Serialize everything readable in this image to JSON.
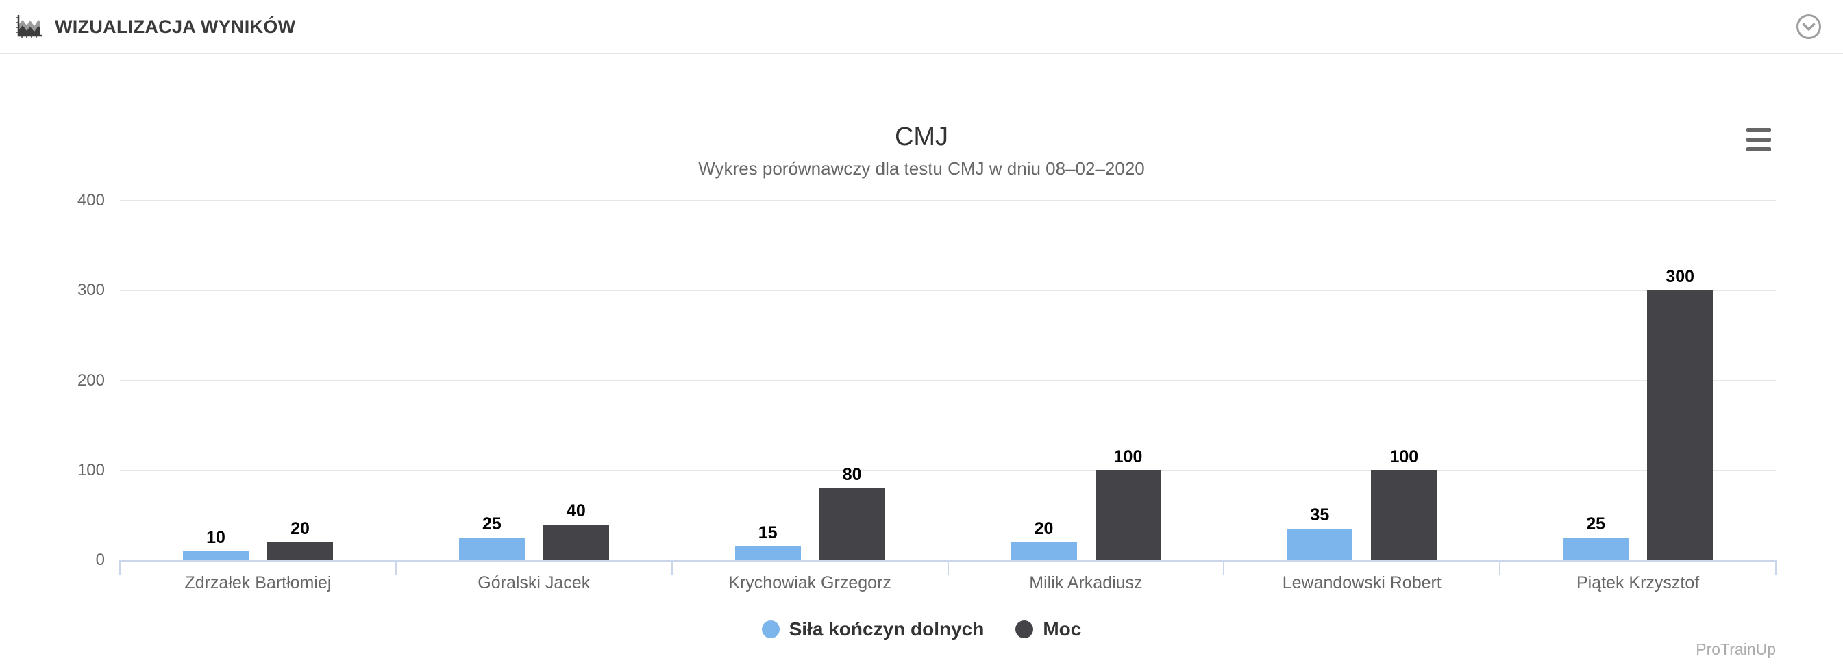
{
  "header": {
    "title": "WIZUALIZACJA WYNIKÓW",
    "logo_icon": "area-chart-icon",
    "collapse_icon": "chevron-down-circle-icon"
  },
  "export_menu_icon": "hamburger-menu-icon",
  "chart_data": {
    "type": "bar",
    "title": "CMJ",
    "subtitle": "Wykres porównawczy dla testu CMJ w dniu 08–02–2020",
    "categories": [
      "Zdrzałek Bartłomiej",
      "Góralski Jacek",
      "Krychowiak Grzegorz",
      "Milik Arkadiusz",
      "Lewandowski Robert",
      "Piątek Krzysztof"
    ],
    "series": [
      {
        "name": "Siła kończyn dolnych",
        "color": "#7cb5ec",
        "values": [
          10,
          25,
          15,
          20,
          35,
          25
        ]
      },
      {
        "name": "Moc",
        "color": "#434348",
        "values": [
          20,
          40,
          80,
          100,
          100,
          300
        ]
      }
    ],
    "xlabel": "",
    "ylabel": "",
    "ylim": [
      0,
      400
    ],
    "yticks": [
      0,
      100,
      200,
      300,
      400
    ],
    "grid": true,
    "data_labels": true,
    "legend_position": "bottom"
  },
  "colors": {
    "grid_line": "#e6e6e6",
    "axis_line": "#ccd6eb",
    "axis_label": "#666666",
    "data_label": "#000000",
    "legend_text": "#333333",
    "export_icon": "#666666",
    "header_icon": "#8f8f8f"
  },
  "footer": {
    "watermark": "ProTrainUp"
  }
}
